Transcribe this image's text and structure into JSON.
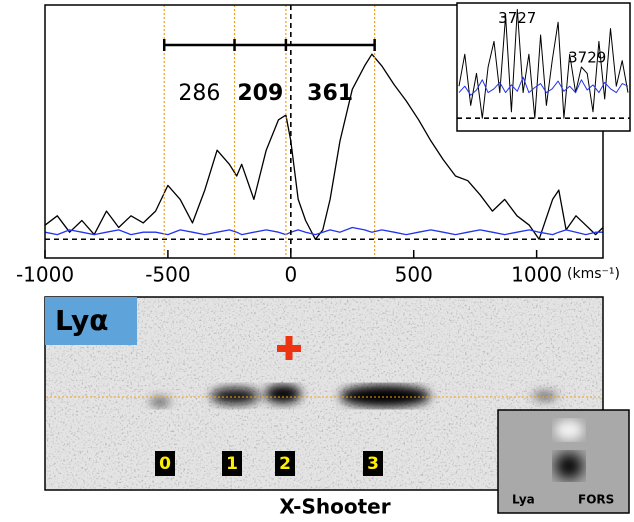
{
  "chart_data": [
    {
      "type": "line",
      "x": [
        -1000,
        -950,
        -900,
        -850,
        -800,
        -750,
        -700,
        -650,
        -600,
        -550,
        -500,
        -450,
        -400,
        -350,
        -300,
        -250,
        -220,
        -200,
        -150,
        -100,
        -50,
        -20,
        0,
        30,
        60,
        100,
        130,
        160,
        200,
        250,
        300,
        330,
        370,
        420,
        470,
        520,
        570,
        620,
        670,
        720,
        770,
        820,
        870,
        920,
        970,
        1010,
        1065,
        1090,
        1120,
        1160,
        1200,
        1240,
        1270
      ],
      "series": [
        {
          "color": "#000000",
          "values": [
            0.06,
            0.1,
            0.03,
            0.08,
            0.02,
            0.12,
            0.05,
            0.1,
            0.07,
            0.12,
            0.23,
            0.17,
            0.07,
            0.21,
            0.38,
            0.32,
            0.27,
            0.32,
            0.17,
            0.38,
            0.51,
            0.53,
            0.42,
            0.17,
            0.08,
            0.0,
            0.04,
            0.17,
            0.42,
            0.64,
            0.74,
            0.79,
            0.74,
            0.66,
            0.59,
            0.51,
            0.42,
            0.34,
            0.27,
            0.25,
            0.19,
            0.12,
            0.17,
            0.1,
            0.06,
            0.0,
            0.17,
            0.21,
            0.04,
            0.1,
            0.06,
            0.02,
            0.05
          ]
        },
        {
          "color": "#2233ee",
          "values": [
            0.03,
            0.02,
            0.04,
            0.03,
            0.02,
            0.03,
            0.04,
            0.02,
            0.03,
            0.03,
            0.02,
            0.04,
            0.03,
            0.02,
            0.03,
            0.04,
            0.03,
            0.02,
            0.03,
            0.04,
            0.03,
            0.02,
            0.03,
            0.04,
            0.03,
            0.02,
            0.03,
            0.04,
            0.03,
            0.05,
            0.04,
            0.03,
            0.04,
            0.03,
            0.02,
            0.03,
            0.04,
            0.03,
            0.02,
            0.03,
            0.04,
            0.03,
            0.02,
            0.03,
            0.04,
            0.03,
            0.02,
            0.03,
            0.04,
            0.03,
            0.02,
            0.03,
            0.03
          ]
        }
      ],
      "xlim": [
        -1000,
        1270
      ],
      "ylim": [
        -0.08,
        1.0
      ],
      "xticks": [
        -1000,
        -500,
        0,
        500,
        1000
      ],
      "x_unit_label": "(kms⁻¹)",
      "hlines": [
        0
      ],
      "vlines": [
        0
      ],
      "marker_lines": {
        "values": [
          -515,
          -229,
          -20,
          341
        ],
        "color": "#f0a020"
      },
      "annotations": [
        {
          "text": "286",
          "x": -372,
          "y": 0.62,
          "bold": false
        },
        {
          "text": "209",
          "x": -124,
          "y": 0.62,
          "bold": true
        },
        {
          "text": "361",
          "x": 160,
          "y": 0.62,
          "bold": true
        }
      ]
    },
    {
      "type": "line",
      "series": [
        {
          "color": "#000000",
          "values": [
            0.35,
            0.6,
            0.2,
            0.45,
            0.1,
            0.5,
            0.7,
            0.3,
            0.9,
            0.15,
            0.95,
            0.3,
            0.6,
            0.1,
            0.75,
            0.2,
            0.55,
            0.85,
            0.1,
            0.6,
            0.3,
            0.5,
            0.45,
            0.15,
            0.7,
            0.25,
            0.8,
            0.35,
            0.55,
            0.3
          ]
        },
        {
          "color": "#2233ee",
          "values": [
            0.3,
            0.35,
            0.28,
            0.32,
            0.4,
            0.3,
            0.33,
            0.38,
            0.3,
            0.36,
            0.31,
            0.42,
            0.3,
            0.34,
            0.37,
            0.3,
            0.33,
            0.39,
            0.31,
            0.35,
            0.3,
            0.4,
            0.32,
            0.36,
            0.3,
            0.38,
            0.33,
            0.3,
            0.37,
            0.35
          ]
        }
      ],
      "ylim": [
        0,
        1
      ],
      "hlines": [
        0.1
      ],
      "annotations": [
        {
          "text": "3727",
          "x": 10,
          "y": 0.88,
          "bold": false
        },
        {
          "text": "3729",
          "x": 22,
          "y": 0.57,
          "bold": false
        }
      ]
    }
  ],
  "image_panel": {
    "label": "Lyα",
    "slit_labels": [
      "0",
      "1",
      "2",
      "3"
    ],
    "caption": "X-Shooter",
    "inset_labels": [
      "Lya",
      "FORS"
    ]
  }
}
